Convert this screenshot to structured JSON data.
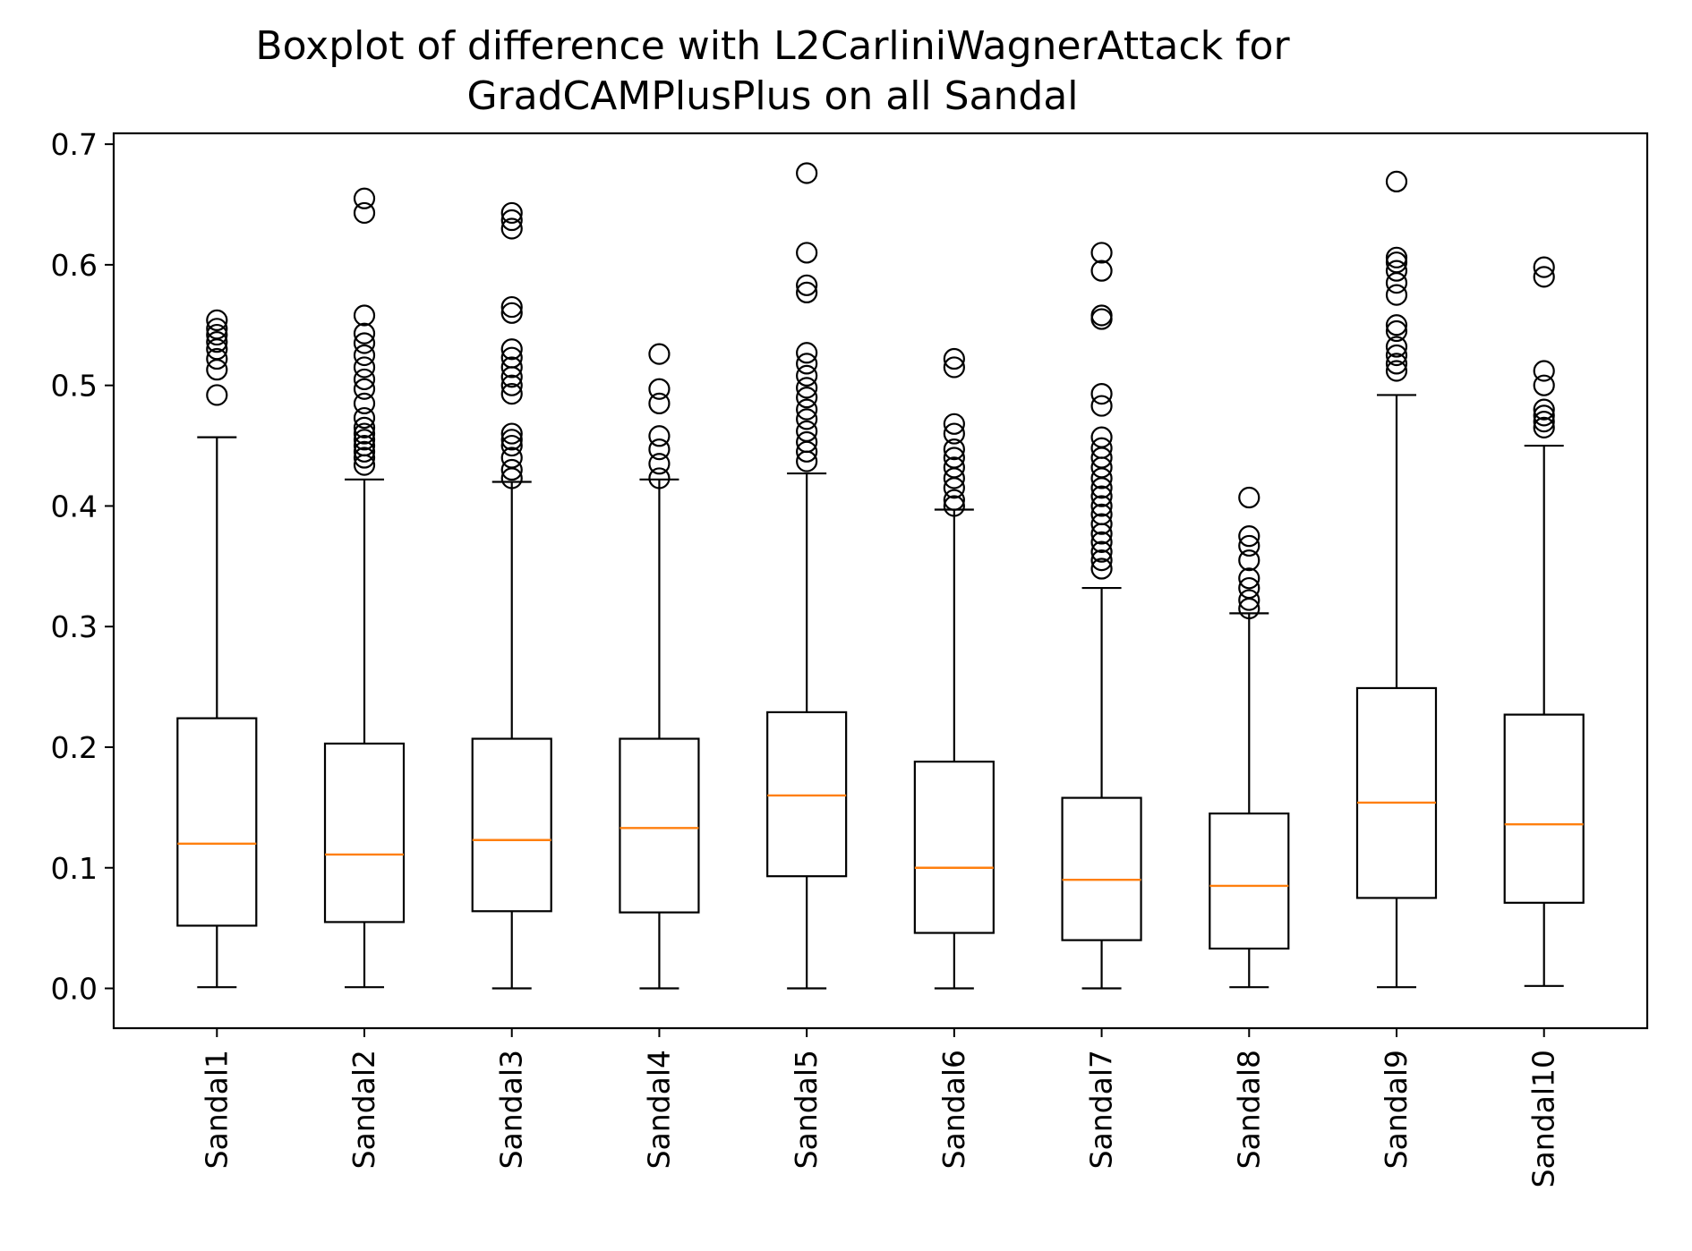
{
  "chart_data": {
    "type": "boxplot",
    "title": "Boxplot of difference with L2CarliniWagnerAttack for GradCAMPlusPlus on all Sandal",
    "title_lines": [
      "Boxplot of difference with L2CarliniWagnerAttack for",
      "GradCAMPlusPlus on all Sandal"
    ],
    "xlabel": "",
    "ylabel": "",
    "ylim": [
      -0.033,
      0.709
    ],
    "yticks": [
      0.0,
      0.1,
      0.2,
      0.3,
      0.4,
      0.5,
      0.6,
      0.7
    ],
    "ytick_labels": [
      "0.0",
      "0.1",
      "0.2",
      "0.3",
      "0.4",
      "0.5",
      "0.6",
      "0.7"
    ],
    "grid": false,
    "colors": {
      "box": "#000000",
      "median": "#ff7f0e",
      "outlier": "#000000"
    },
    "categories": [
      "Sandal1",
      "Sandal2",
      "Sandal3",
      "Sandal4",
      "Sandal5",
      "Sandal6",
      "Sandal7",
      "Sandal8",
      "Sandal9",
      "Sandal10"
    ],
    "boxes": [
      {
        "label": "Sandal1",
        "whisker_low": 0.001,
        "q1": 0.052,
        "median": 0.12,
        "q3": 0.224,
        "whisker_high": 0.457,
        "outliers": [
          0.492,
          0.513,
          0.522,
          0.53,
          0.536,
          0.542,
          0.547,
          0.554
        ]
      },
      {
        "label": "Sandal2",
        "whisker_low": 0.001,
        "q1": 0.055,
        "median": 0.111,
        "q3": 0.203,
        "whisker_high": 0.422,
        "outliers": [
          0.434,
          0.44,
          0.445,
          0.45,
          0.455,
          0.46,
          0.465,
          0.473,
          0.485,
          0.497,
          0.505,
          0.515,
          0.525,
          0.535,
          0.543,
          0.558,
          0.643,
          0.655
        ]
      },
      {
        "label": "Sandal3",
        "whisker_low": 0.0,
        "q1": 0.064,
        "median": 0.123,
        "q3": 0.207,
        "whisker_high": 0.42,
        "outliers": [
          0.423,
          0.43,
          0.44,
          0.45,
          0.455,
          0.46,
          0.493,
          0.5,
          0.507,
          0.515,
          0.523,
          0.53,
          0.56,
          0.565,
          0.63,
          0.637,
          0.643
        ]
      },
      {
        "label": "Sandal4",
        "whisker_low": 0.0,
        "q1": 0.063,
        "median": 0.133,
        "q3": 0.207,
        "whisker_high": 0.422,
        "outliers": [
          0.423,
          0.435,
          0.447,
          0.458,
          0.485,
          0.497,
          0.526
        ]
      },
      {
        "label": "Sandal5",
        "whisker_low": 0.0,
        "q1": 0.093,
        "median": 0.16,
        "q3": 0.229,
        "whisker_high": 0.427,
        "outliers": [
          0.437,
          0.445,
          0.453,
          0.462,
          0.472,
          0.48,
          0.49,
          0.498,
          0.508,
          0.518,
          0.527,
          0.577,
          0.583,
          0.61,
          0.676
        ]
      },
      {
        "label": "Sandal6",
        "whisker_low": 0.0,
        "q1": 0.046,
        "median": 0.1,
        "q3": 0.188,
        "whisker_high": 0.397,
        "outliers": [
          0.4,
          0.405,
          0.415,
          0.423,
          0.432,
          0.44,
          0.447,
          0.46,
          0.468,
          0.515,
          0.522
        ]
      },
      {
        "label": "Sandal7",
        "whisker_low": 0.0,
        "q1": 0.04,
        "median": 0.09,
        "q3": 0.158,
        "whisker_high": 0.332,
        "outliers": [
          0.348,
          0.355,
          0.362,
          0.37,
          0.377,
          0.385,
          0.393,
          0.4,
          0.408,
          0.415,
          0.423,
          0.432,
          0.44,
          0.448,
          0.457,
          0.483,
          0.493,
          0.555,
          0.558,
          0.595,
          0.61
        ]
      },
      {
        "label": "Sandal8",
        "whisker_low": 0.001,
        "q1": 0.033,
        "median": 0.085,
        "q3": 0.145,
        "whisker_high": 0.311,
        "outliers": [
          0.315,
          0.322,
          0.332,
          0.34,
          0.355,
          0.367,
          0.375,
          0.407
        ]
      },
      {
        "label": "Sandal9",
        "whisker_low": 0.001,
        "q1": 0.075,
        "median": 0.154,
        "q3": 0.249,
        "whisker_high": 0.492,
        "outliers": [
          0.512,
          0.518,
          0.525,
          0.532,
          0.545,
          0.55,
          0.575,
          0.585,
          0.595,
          0.602,
          0.606,
          0.669
        ]
      },
      {
        "label": "Sandal10",
        "whisker_low": 0.002,
        "q1": 0.071,
        "median": 0.136,
        "q3": 0.227,
        "whisker_high": 0.45,
        "outliers": [
          0.465,
          0.47,
          0.475,
          0.48,
          0.5,
          0.512,
          0.59,
          0.598
        ]
      }
    ]
  }
}
